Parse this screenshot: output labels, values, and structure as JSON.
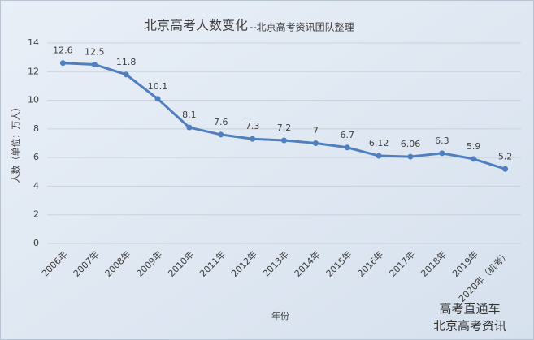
{
  "chart_data": {
    "type": "line",
    "title": "北京高考人数变化",
    "subtitle": "--北京高考资讯团队整理",
    "y_label": "人数（单位：万人）",
    "x_label": "年份",
    "categories": [
      "2006年",
      "2007年",
      "2008年",
      "2009年",
      "2010年",
      "2011年",
      "2012年",
      "2013年",
      "2014年",
      "2015年",
      "2016年",
      "2017年",
      "2018年",
      "2019年",
      "2020年（机考）"
    ],
    "values": [
      12.6,
      12.5,
      11.8,
      10.1,
      8.1,
      7.6,
      7.3,
      7.2,
      7.0,
      6.7,
      6.12,
      6.06,
      6.3,
      5.9,
      5.2
    ],
    "color": "#4f7fbf",
    "ylim": [
      0,
      14
    ],
    "yticks": [
      0,
      2,
      4,
      6,
      8,
      10,
      12,
      14
    ],
    "grid": true,
    "watermark": [
      "高考直通车",
      "北京高考资讯"
    ]
  }
}
